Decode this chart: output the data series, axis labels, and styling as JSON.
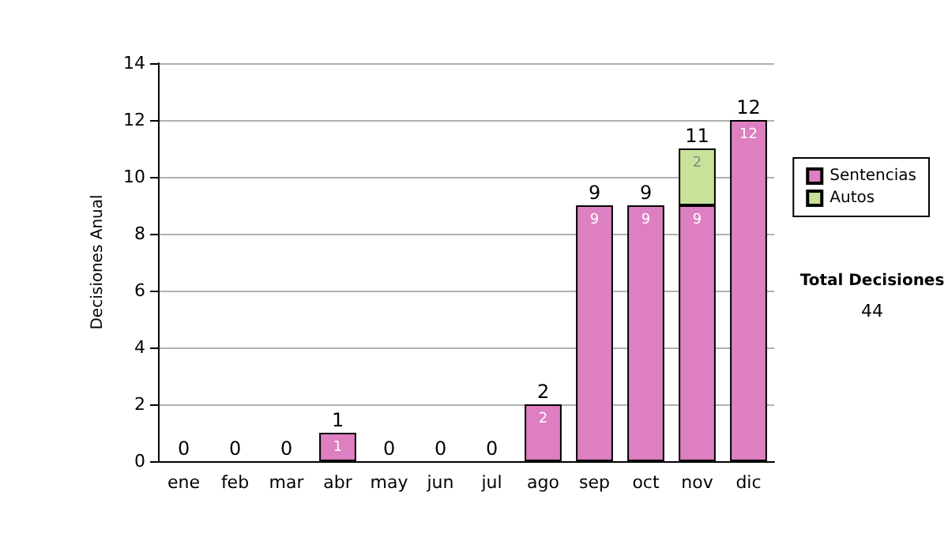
{
  "chart_data": {
    "type": "bar",
    "stacked": true,
    "ylabel": "Decisiones Anual",
    "categories": [
      "ene",
      "feb",
      "mar",
      "abr",
      "may",
      "jun",
      "jul",
      "ago",
      "sep",
      "oct",
      "nov",
      "dic"
    ],
    "series": [
      {
        "name": "Sentencias",
        "color": "#dd7fc0",
        "values": [
          0,
          0,
          0,
          1,
          0,
          0,
          0,
          2,
          9,
          9,
          9,
          12
        ],
        "value_labels": [
          null,
          null,
          null,
          "1",
          null,
          null,
          null,
          "2",
          "9",
          "9",
          "9",
          "12"
        ]
      },
      {
        "name": "Autos",
        "color": "#c8e29a",
        "values": [
          0,
          0,
          0,
          0,
          0,
          0,
          0,
          0,
          0,
          0,
          2,
          0
        ],
        "value_labels": [
          null,
          null,
          null,
          null,
          null,
          null,
          null,
          null,
          null,
          null,
          "2",
          null
        ]
      }
    ],
    "totals": [
      "0",
      "0",
      "0",
      "1",
      "0",
      "0",
      "0",
      "2",
      "9",
      "9",
      "11",
      "12"
    ],
    "ylim": [
      0,
      14
    ],
    "yticks": [
      0,
      2,
      4,
      6,
      8,
      10,
      12,
      14
    ],
    "grid": "y",
    "legend": "right",
    "annotations": [
      "Total Decisiones",
      "44"
    ]
  }
}
